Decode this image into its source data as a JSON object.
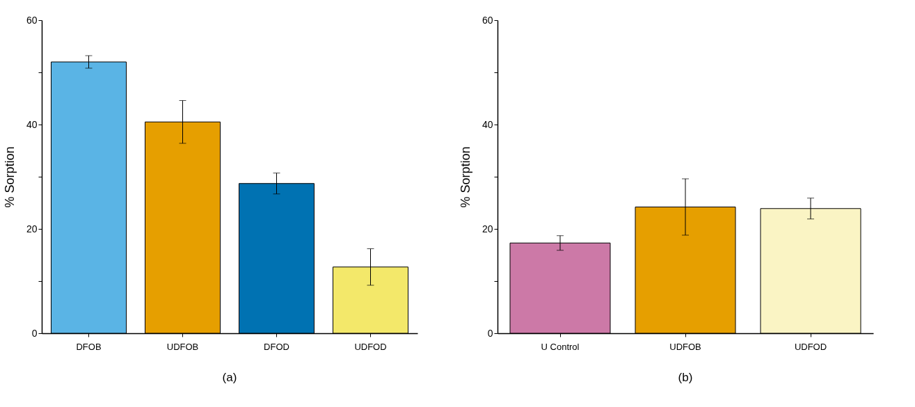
{
  "chart_data": [
    {
      "type": "bar",
      "title": "(a)",
      "ylabel": "% Sorption",
      "categories": [
        "DFOB",
        "UDFOB",
        "DFOD",
        "UDFOD"
      ],
      "values": [
        52.0,
        40.5,
        28.7,
        12.7
      ],
      "errors": [
        1.2,
        4.1,
        2.0,
        3.5
      ],
      "colors": [
        "#5ab4e5",
        "#e69f00",
        "#0072b2",
        "#f3e86a"
      ],
      "ylim": [
        0,
        60
      ],
      "yticks": [
        0,
        {
          "value": 10,
          "label": null
        },
        20,
        {
          "value": 30,
          "label": null
        },
        40,
        {
          "value": 50,
          "label": null
        },
        60
      ],
      "grid": false
    },
    {
      "type": "bar",
      "title": "(b)",
      "ylabel": "% Sorption",
      "categories": [
        "U Control",
        "UDFOB",
        "UDFOD"
      ],
      "values": [
        17.3,
        24.2,
        23.9
      ],
      "errors": [
        1.4,
        5.4,
        2.0
      ],
      "colors": [
        "#cc79a7",
        "#e69f00",
        "#faf4c4"
      ],
      "ylim": [
        0,
        60
      ],
      "yticks": [
        0,
        {
          "value": 10,
          "label": null
        },
        20,
        {
          "value": 30,
          "label": null
        },
        40,
        {
          "value": 50,
          "label": null
        },
        60
      ],
      "grid": false
    }
  ]
}
